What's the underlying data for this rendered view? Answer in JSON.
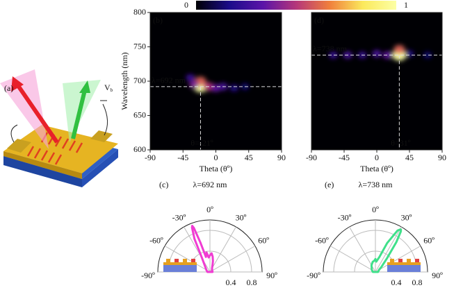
{
  "illustration": {
    "label": "(a)",
    "bias_label": "V",
    "bias_sub": "b"
  },
  "colorbar": {
    "colormap": [
      "#000004",
      "#1b0c8a",
      "#5a14a8",
      "#b5367a",
      "#f07f3c",
      "#fbe95c",
      "#fcffa4"
    ],
    "clim": [
      0,
      1
    ],
    "ticks": [
      0,
      1
    ]
  },
  "chart_data": [
    {
      "type": "heatmap",
      "label": "(b)",
      "xlabel": "Theta (θº)",
      "ylabel": "Wavelength (nm)",
      "xlim": [
        -90,
        90
      ],
      "xticks": [
        -90,
        -45,
        0,
        45,
        90
      ],
      "ylim": [
        600,
        800
      ],
      "yticks": [
        600,
        650,
        700,
        750,
        800
      ],
      "x": [
        -21,
        -21,
        -30,
        -10,
        0,
        10,
        -35,
        25,
        40
      ],
      "y": [
        692,
        700,
        695,
        692,
        690,
        692,
        705,
        690,
        692
      ],
      "values": [
        1.0,
        0.6,
        0.4,
        0.5,
        0.35,
        0.3,
        0.25,
        0.2,
        0.15
      ],
      "line_x": -21,
      "line_y": 692,
      "wavelength_label": "λ=692 nm",
      "angle_label": "θ=-21º"
    },
    {
      "type": "heatmap",
      "label": "(d)",
      "xlabel": "Theta (θº)",
      "xlim": [
        -90,
        90
      ],
      "xticks": [
        -90,
        -45,
        0,
        45,
        90
      ],
      "ylim": [
        600,
        800
      ],
      "x": [
        31,
        31,
        -60,
        -40,
        -20,
        0,
        15,
        45,
        70
      ],
      "y": [
        738,
        746,
        738,
        738,
        738,
        740,
        738,
        740,
        738
      ],
      "values": [
        1.0,
        0.6,
        0.25,
        0.3,
        0.25,
        0.3,
        0.35,
        0.2,
        0.15
      ],
      "line_x": 31,
      "line_y": 738,
      "wavelength_label": "λ=738 nm",
      "angle_label": "θ=31º"
    },
    {
      "type": "polar",
      "label": "(c)",
      "title": "λ=692 nm",
      "color": "#f03cd2",
      "thetalim": [
        -90,
        90
      ],
      "rlim": [
        0,
        1
      ],
      "rticks": [
        0.4,
        0.8
      ],
      "thetaticks": [
        {
          "value": -90,
          "label": "-90º"
        },
        {
          "value": -60,
          "label": "-60º"
        },
        {
          "value": -30,
          "label": "-30º"
        },
        {
          "value": 0,
          "label": "0º"
        },
        {
          "value": 30,
          "label": "30º"
        },
        {
          "value": 60,
          "label": "60º"
        },
        {
          "value": 90,
          "label": "90º"
        }
      ],
      "theta": [
        -90,
        -60,
        -40,
        -30,
        -25,
        -22,
        -21,
        -20,
        -18,
        -15,
        -10,
        -5,
        0,
        5,
        10,
        15,
        20,
        30,
        60,
        90
      ],
      "r": [
        0.05,
        0.08,
        0.15,
        0.3,
        0.7,
        0.92,
        0.95,
        0.9,
        0.6,
        0.3,
        0.38,
        0.28,
        0.32,
        0.36,
        0.3,
        0.22,
        0.15,
        0.08,
        0.05,
        0.05
      ]
    },
    {
      "type": "polar",
      "label": "(e)",
      "title": "λ=738 nm",
      "color": "#3fe08a",
      "thetalim": [
        -90,
        90
      ],
      "rlim": [
        0,
        1
      ],
      "rticks": [
        0.4,
        0.8
      ],
      "thetaticks": [
        {
          "value": -90,
          "label": "-90º"
        },
        {
          "value": -60,
          "label": "-60º"
        },
        {
          "value": -30,
          "label": "-30º"
        },
        {
          "value": 0,
          "label": "0º"
        },
        {
          "value": 30,
          "label": "30º"
        },
        {
          "value": 60,
          "label": "60º"
        },
        {
          "value": 90,
          "label": "90º"
        }
      ],
      "theta": [
        -90,
        -60,
        -30,
        -15,
        -5,
        0,
        5,
        15,
        22,
        28,
        30,
        31,
        32,
        35,
        40,
        50,
        60,
        90
      ],
      "r": [
        0.05,
        0.08,
        0.15,
        0.2,
        0.22,
        0.25,
        0.2,
        0.3,
        0.6,
        0.9,
        0.94,
        0.95,
        0.92,
        0.7,
        0.35,
        0.15,
        0.08,
        0.05
      ]
    }
  ]
}
